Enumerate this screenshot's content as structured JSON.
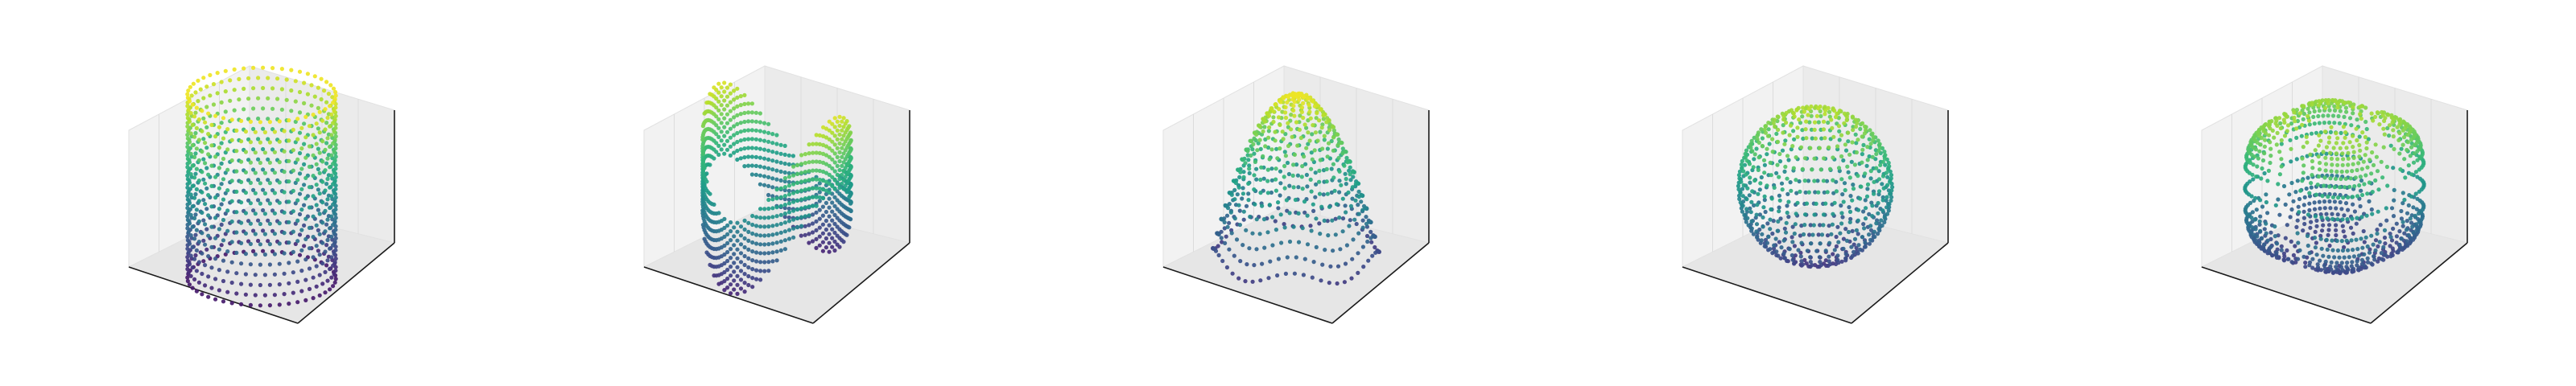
{
  "chart_data": [
    {
      "type": "scatter",
      "projection": "3d",
      "shape": "open-cylinder",
      "colormap": "viridis",
      "color_by": "z",
      "xlim": [
        -1,
        1
      ],
      "ylim": [
        -1,
        1
      ],
      "zlim": [
        -1,
        1
      ],
      "ticks": "hidden",
      "grid": true,
      "title": "",
      "xlabel": "",
      "ylabel": "",
      "zlabel": ""
    },
    {
      "type": "scatter",
      "projection": "3d",
      "shape": "saddle-ring",
      "colormap": "viridis",
      "color_by": "z",
      "xlim": [
        -1,
        1
      ],
      "ylim": [
        -1,
        1
      ],
      "zlim": [
        -1,
        1
      ],
      "ticks": "hidden",
      "grid": true,
      "title": "",
      "xlabel": "",
      "ylabel": "",
      "zlabel": ""
    },
    {
      "type": "scatter",
      "projection": "3d",
      "shape": "paraboloid-cap",
      "colormap": "viridis",
      "color_by": "z",
      "xlim": [
        -1,
        1
      ],
      "ylim": [
        -1,
        1
      ],
      "zlim": [
        -1,
        1
      ],
      "ticks": "hidden",
      "grid": true,
      "title": "",
      "xlabel": "",
      "ylabel": "",
      "zlabel": ""
    },
    {
      "type": "scatter",
      "projection": "3d",
      "shape": "sphere",
      "colormap": "viridis",
      "color_by": "z",
      "xlim": [
        -1,
        1
      ],
      "ylim": [
        -1,
        1
      ],
      "zlim": [
        -1,
        1
      ],
      "ticks": "hidden",
      "grid": true,
      "title": "",
      "xlabel": "",
      "ylabel": "",
      "zlabel": ""
    },
    {
      "type": "scatter",
      "projection": "3d",
      "shape": "superellipsoid",
      "colormap": "viridis",
      "color_by": "z",
      "xlim": [
        -1,
        1
      ],
      "ylim": [
        -1,
        1
      ],
      "zlim": [
        -1,
        1
      ],
      "ticks": "hidden",
      "grid": true,
      "title": "",
      "xlabel": "",
      "ylabel": "",
      "zlabel": ""
    }
  ]
}
